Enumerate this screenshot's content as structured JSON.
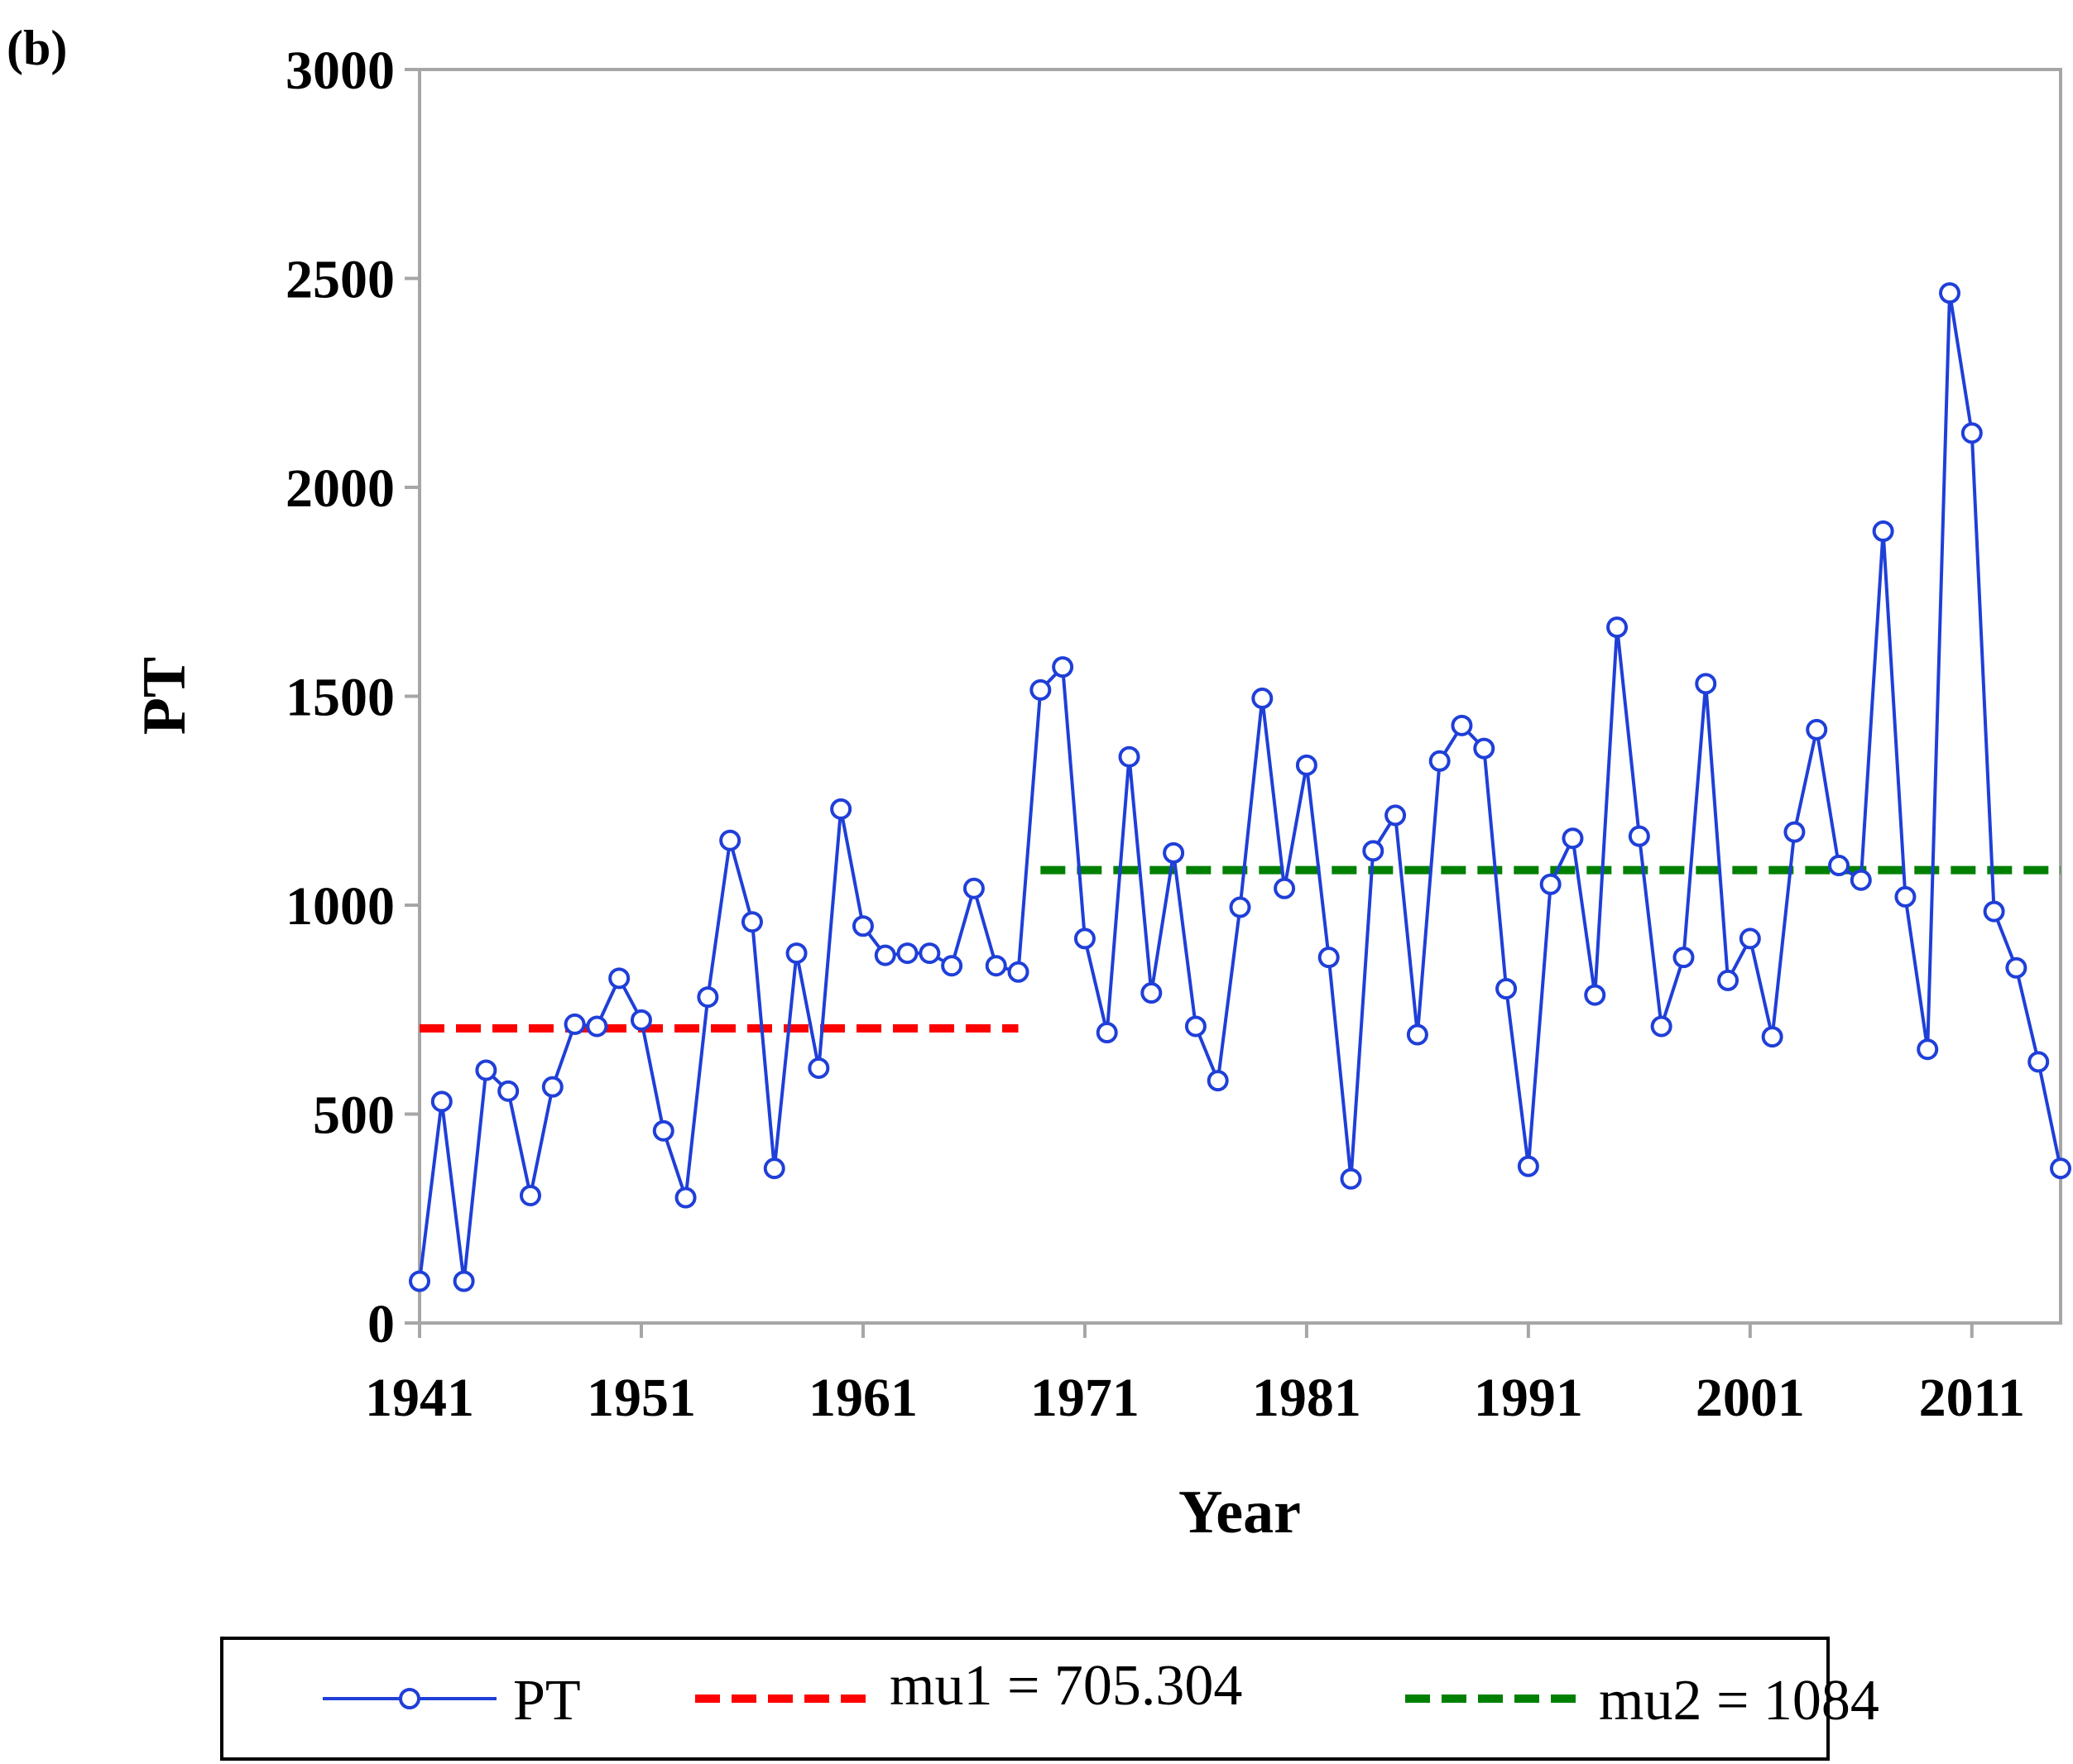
{
  "panel_label": "(b)",
  "chart_data": {
    "type": "line",
    "title": "",
    "xlabel": "Year",
    "ylabel": "PT",
    "xlim": [
      1941,
      2015
    ],
    "ylim": [
      0,
      3000
    ],
    "x_ticks": [
      "1941",
      "1951",
      "1961",
      "1971",
      "1981",
      "1991",
      "2001",
      "2011"
    ],
    "x_tick_values": [
      1941,
      1951,
      1961,
      1971,
      1981,
      1991,
      2001,
      2011
    ],
    "y_ticks": [
      "0",
      "500",
      "1000",
      "1500",
      "2000",
      "2500",
      "3000"
    ],
    "y_tick_values": [
      0,
      500,
      1000,
      1500,
      2000,
      2500,
      3000
    ],
    "grid": false,
    "legend_position": "bottom",
    "series": [
      {
        "name": "PT",
        "color": "#1f3fd8",
        "marker": "open-circle",
        "x": [
          1941,
          1942,
          1943,
          1944,
          1945,
          1946,
          1947,
          1948,
          1949,
          1950,
          1951,
          1952,
          1953,
          1954,
          1955,
          1956,
          1957,
          1958,
          1959,
          1960,
          1961,
          1962,
          1963,
          1964,
          1965,
          1966,
          1967,
          1968,
          1969,
          1970,
          1971,
          1972,
          1973,
          1974,
          1975,
          1976,
          1977,
          1978,
          1979,
          1980,
          1981,
          1982,
          1983,
          1984,
          1985,
          1986,
          1987,
          1988,
          1989,
          1990,
          1991,
          1992,
          1993,
          1994,
          1995,
          1996,
          1997,
          1998,
          1999,
          2000,
          2001,
          2002,
          2003,
          2004,
          2005,
          2006,
          2007,
          2008,
          2009,
          2010,
          2011,
          2012,
          2013,
          2014,
          2015
        ],
        "values": [
          100,
          530,
          100,
          605,
          555,
          305,
          565,
          715,
          710,
          825,
          725,
          460,
          300,
          780,
          1155,
          960,
          370,
          885,
          610,
          1230,
          950,
          880,
          885,
          885,
          855,
          1040,
          855,
          840,
          1515,
          1570,
          920,
          695,
          1355,
          790,
          1125,
          710,
          580,
          995,
          1495,
          1040,
          1335,
          875,
          345,
          1130,
          1215,
          690,
          1345,
          1430,
          1375,
          800,
          375,
          1050,
          1160,
          785,
          1665,
          1165,
          710,
          875,
          1530,
          820,
          920,
          685,
          1175,
          1420,
          1095,
          1060,
          1895,
          1020,
          655,
          2465,
          2130,
          985,
          850,
          625,
          370
        ]
      }
    ],
    "reference_lines": [
      {
        "name": "mu1 = 705.304",
        "value": 705.304,
        "x_start": 1941,
        "x_end": 1968,
        "color": "#ff0000",
        "style": "dashed"
      },
      {
        "name": "mu2 = 1084",
        "value": 1084,
        "x_start": 1969,
        "x_end": 2015,
        "color": "#008000",
        "style": "dashed"
      }
    ]
  }
}
